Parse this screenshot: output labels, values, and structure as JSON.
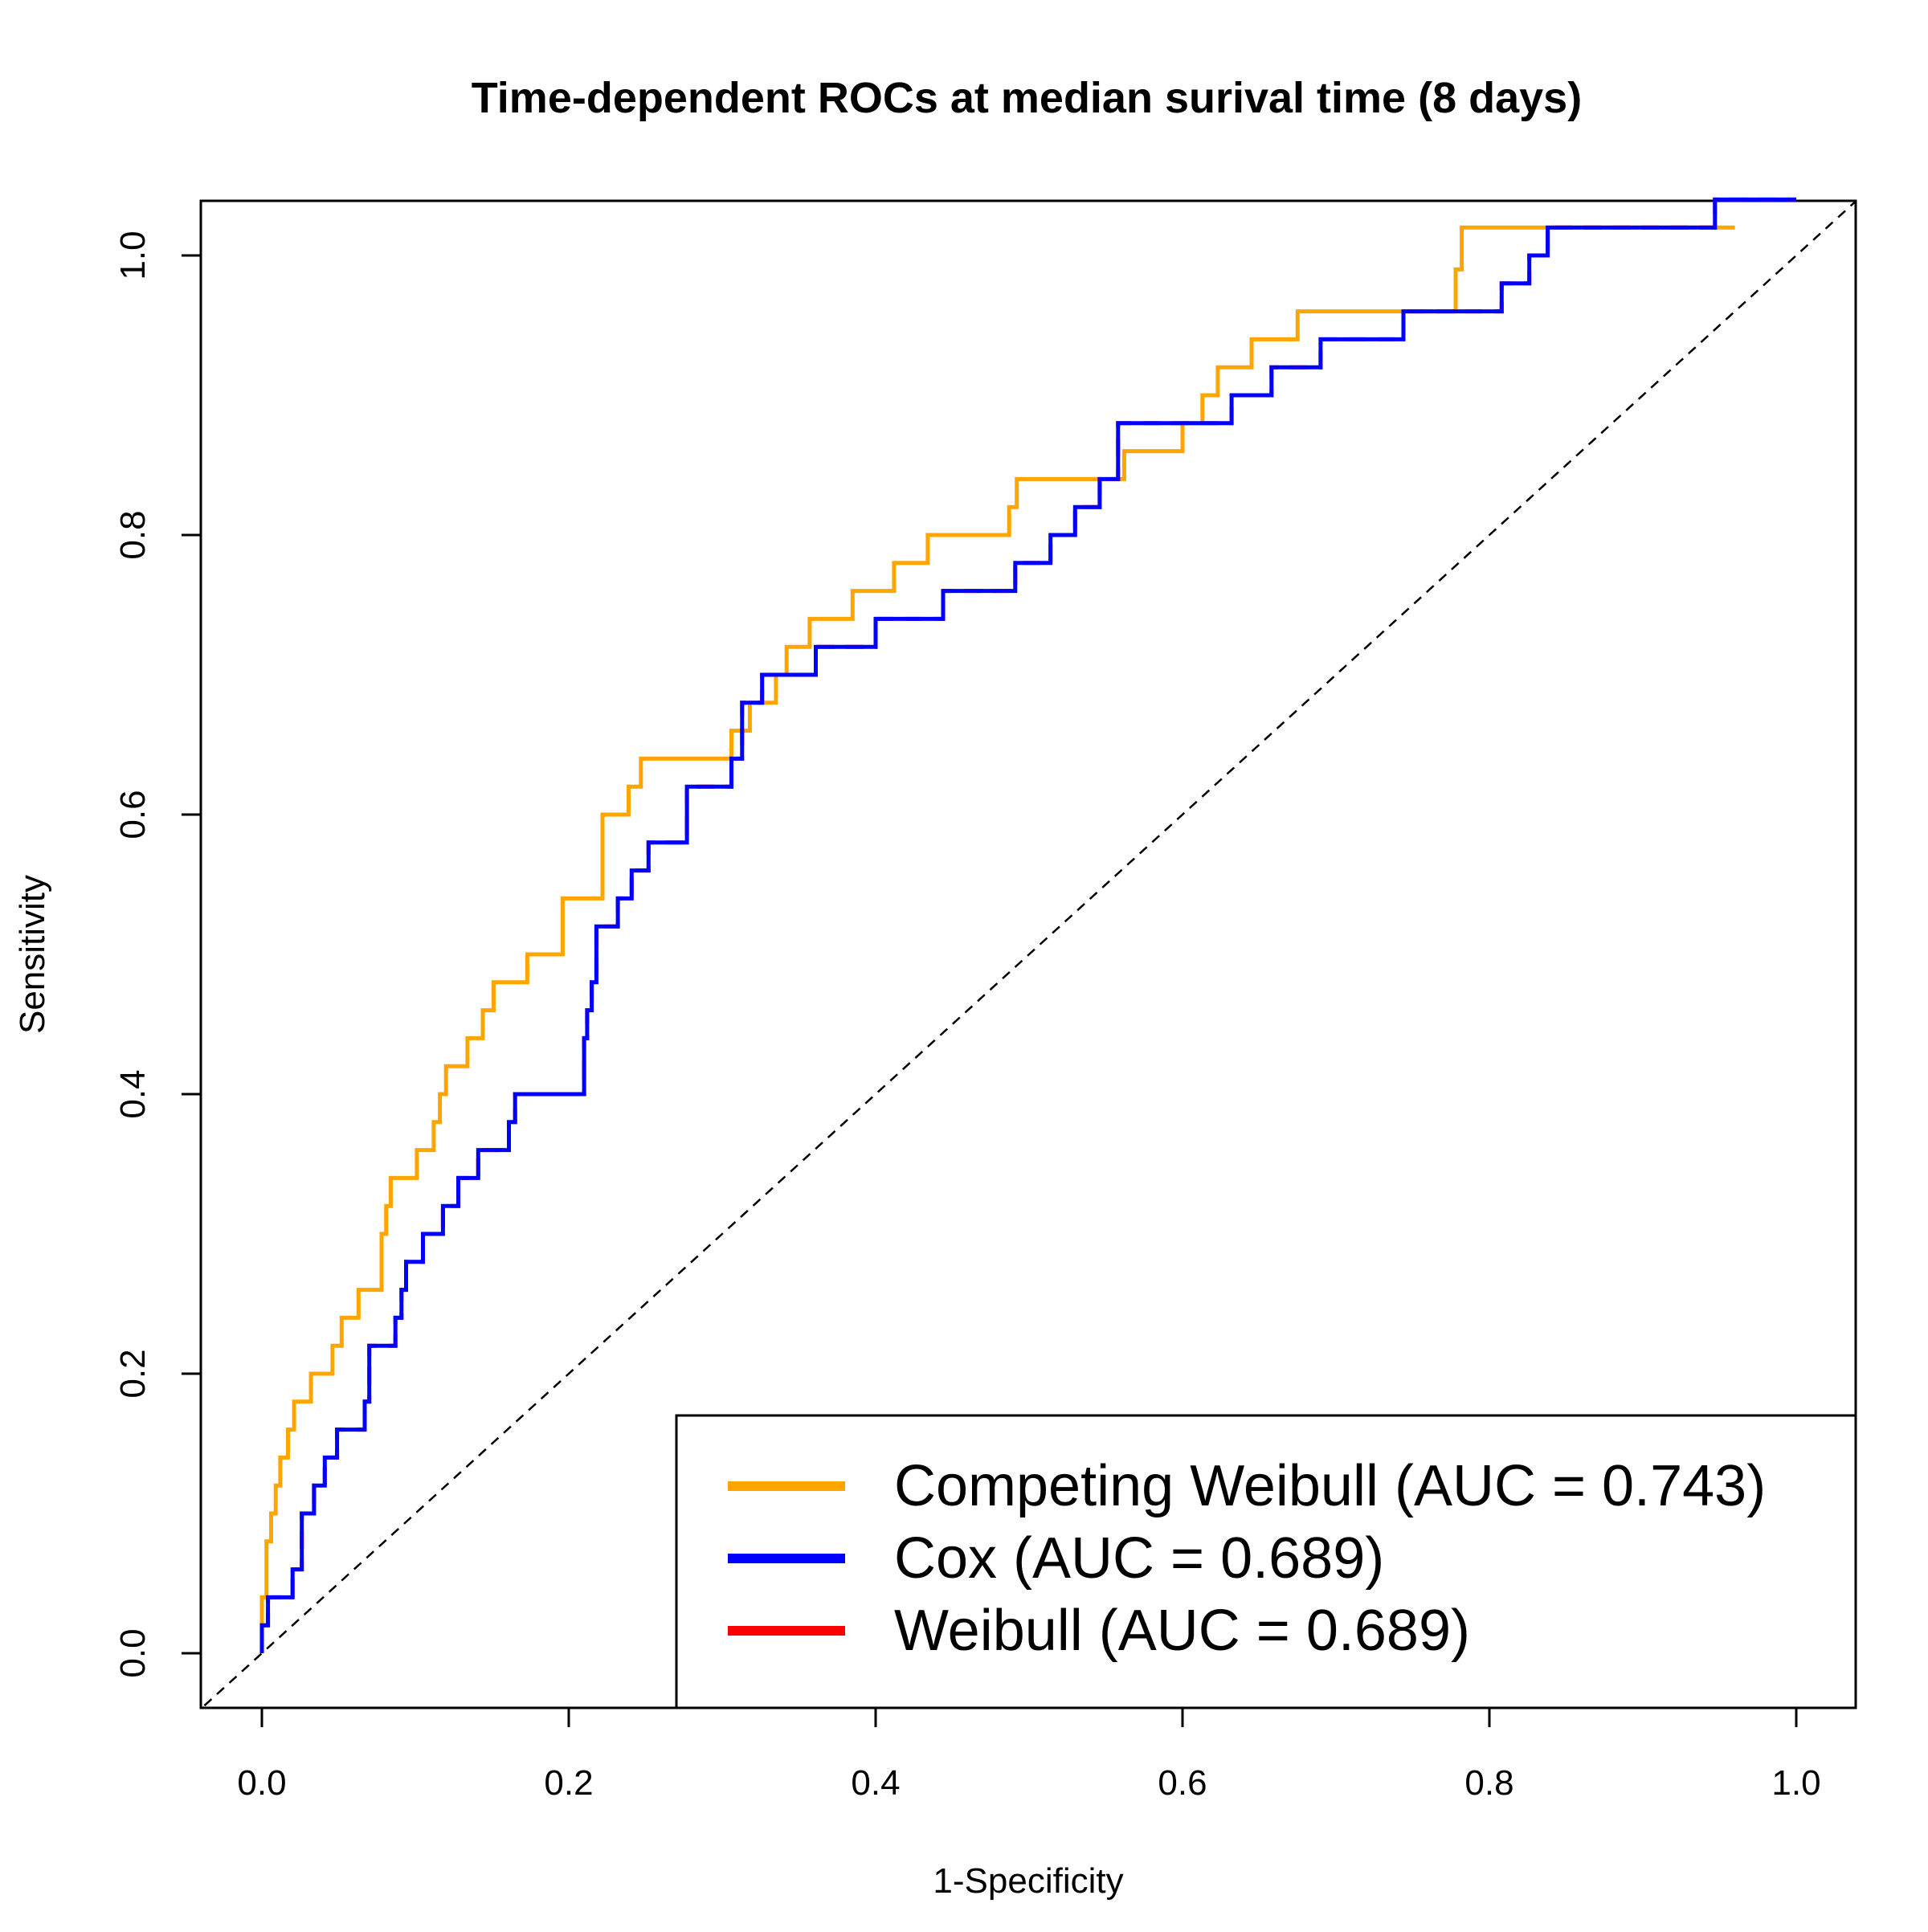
{
  "chart_data": {
    "type": "line",
    "title": "Time-dependent ROCs at median surival time (8 days)",
    "xlabel": "1-Specificity",
    "ylabel": "Sensitivity",
    "xlim": [
      0,
      1
    ],
    "ylim": [
      0,
      1
    ],
    "x_ticks": [
      "0.0",
      "0.2",
      "0.4",
      "0.6",
      "0.8",
      "1.0"
    ],
    "y_ticks": [
      "0.0",
      "0.2",
      "0.4",
      "0.6",
      "0.8",
      "1.0"
    ],
    "grid": false,
    "legend_position": "bottom-right",
    "reference_line": {
      "style": "dashed",
      "color": "#000000",
      "points": [
        [
          0,
          0
        ],
        [
          1,
          1
        ]
      ]
    },
    "series": [
      {
        "name": "Competing Weibull (AUC = 0.743)",
        "color": "#FFA500",
        "style": "solid",
        "points": [
          [
            0.0,
            0.0
          ],
          [
            0.0,
            0.04
          ],
          [
            0.003,
            0.04
          ],
          [
            0.003,
            0.08
          ],
          [
            0.006,
            0.08
          ],
          [
            0.006,
            0.1
          ],
          [
            0.009,
            0.1
          ],
          [
            0.009,
            0.12
          ],
          [
            0.012,
            0.12
          ],
          [
            0.012,
            0.14
          ],
          [
            0.017,
            0.14
          ],
          [
            0.017,
            0.16
          ],
          [
            0.021,
            0.16
          ],
          [
            0.021,
            0.18
          ],
          [
            0.032,
            0.18
          ],
          [
            0.032,
            0.2
          ],
          [
            0.046,
            0.2
          ],
          [
            0.046,
            0.22
          ],
          [
            0.052,
            0.22
          ],
          [
            0.052,
            0.24
          ],
          [
            0.063,
            0.24
          ],
          [
            0.063,
            0.26
          ],
          [
            0.078,
            0.26
          ],
          [
            0.078,
            0.3
          ],
          [
            0.081,
            0.3
          ],
          [
            0.081,
            0.32
          ],
          [
            0.084,
            0.32
          ],
          [
            0.084,
            0.34
          ],
          [
            0.101,
            0.34
          ],
          [
            0.101,
            0.36
          ],
          [
            0.112,
            0.36
          ],
          [
            0.112,
            0.38
          ],
          [
            0.116,
            0.38
          ],
          [
            0.116,
            0.4
          ],
          [
            0.12,
            0.4
          ],
          [
            0.12,
            0.42
          ],
          [
            0.134,
            0.42
          ],
          [
            0.134,
            0.44
          ],
          [
            0.144,
            0.44
          ],
          [
            0.144,
            0.46
          ],
          [
            0.151,
            0.46
          ],
          [
            0.151,
            0.48
          ],
          [
            0.173,
            0.48
          ],
          [
            0.173,
            0.5
          ],
          [
            0.196,
            0.5
          ],
          [
            0.196,
            0.54
          ],
          [
            0.222,
            0.54
          ],
          [
            0.222,
            0.6
          ],
          [
            0.239,
            0.6
          ],
          [
            0.239,
            0.62
          ],
          [
            0.247,
            0.62
          ],
          [
            0.247,
            0.64
          ],
          [
            0.306,
            0.64
          ],
          [
            0.306,
            0.66
          ],
          [
            0.318,
            0.66
          ],
          [
            0.318,
            0.68
          ],
          [
            0.335,
            0.68
          ],
          [
            0.335,
            0.7
          ],
          [
            0.342,
            0.7
          ],
          [
            0.342,
            0.72
          ],
          [
            0.357,
            0.72
          ],
          [
            0.357,
            0.74
          ],
          [
            0.385,
            0.74
          ],
          [
            0.385,
            0.76
          ],
          [
            0.412,
            0.76
          ],
          [
            0.412,
            0.78
          ],
          [
            0.434,
            0.78
          ],
          [
            0.434,
            0.8
          ],
          [
            0.487,
            0.8
          ],
          [
            0.487,
            0.82
          ],
          [
            0.492,
            0.82
          ],
          [
            0.492,
            0.84
          ],
          [
            0.562,
            0.84
          ],
          [
            0.562,
            0.86
          ],
          [
            0.6,
            0.86
          ],
          [
            0.6,
            0.88
          ],
          [
            0.613,
            0.88
          ],
          [
            0.613,
            0.9
          ],
          [
            0.623,
            0.9
          ],
          [
            0.623,
            0.92
          ],
          [
            0.645,
            0.92
          ],
          [
            0.645,
            0.94
          ],
          [
            0.675,
            0.94
          ],
          [
            0.675,
            0.96
          ],
          [
            0.778,
            0.96
          ],
          [
            0.778,
            0.99
          ],
          [
            0.782,
            0.99
          ],
          [
            0.782,
            1.02
          ],
          [
            0.96,
            1.02
          ],
          [
            0.96,
            1.02
          ]
        ]
      },
      {
        "name": "Cox (AUC = 0.689)",
        "color": "#0000FF",
        "style": "solid",
        "points": [
          [
            0.0,
            0.0
          ],
          [
            0.0,
            0.02
          ],
          [
            0.004,
            0.02
          ],
          [
            0.004,
            0.04
          ],
          [
            0.02,
            0.04
          ],
          [
            0.02,
            0.06
          ],
          [
            0.026,
            0.06
          ],
          [
            0.026,
            0.1
          ],
          [
            0.034,
            0.1
          ],
          [
            0.034,
            0.12
          ],
          [
            0.041,
            0.12
          ],
          [
            0.041,
            0.14
          ],
          [
            0.049,
            0.14
          ],
          [
            0.049,
            0.16
          ],
          [
            0.067,
            0.16
          ],
          [
            0.067,
            0.18
          ],
          [
            0.07,
            0.18
          ],
          [
            0.07,
            0.22
          ],
          [
            0.087,
            0.22
          ],
          [
            0.087,
            0.24
          ],
          [
            0.091,
            0.24
          ],
          [
            0.091,
            0.26
          ],
          [
            0.094,
            0.26
          ],
          [
            0.094,
            0.28
          ],
          [
            0.105,
            0.28
          ],
          [
            0.105,
            0.3
          ],
          [
            0.118,
            0.3
          ],
          [
            0.118,
            0.32
          ],
          [
            0.128,
            0.32
          ],
          [
            0.128,
            0.34
          ],
          [
            0.141,
            0.34
          ],
          [
            0.141,
            0.36
          ],
          [
            0.161,
            0.36
          ],
          [
            0.161,
            0.38
          ],
          [
            0.165,
            0.38
          ],
          [
            0.165,
            0.4
          ],
          [
            0.21,
            0.4
          ],
          [
            0.21,
            0.44
          ],
          [
            0.212,
            0.44
          ],
          [
            0.212,
            0.46
          ],
          [
            0.215,
            0.46
          ],
          [
            0.215,
            0.48
          ],
          [
            0.218,
            0.48
          ],
          [
            0.218,
            0.52
          ],
          [
            0.232,
            0.52
          ],
          [
            0.232,
            0.54
          ],
          [
            0.241,
            0.54
          ],
          [
            0.241,
            0.56
          ],
          [
            0.252,
            0.56
          ],
          [
            0.252,
            0.58
          ],
          [
            0.277,
            0.58
          ],
          [
            0.277,
            0.62
          ],
          [
            0.306,
            0.62
          ],
          [
            0.306,
            0.64
          ],
          [
            0.313,
            0.64
          ],
          [
            0.313,
            0.68
          ],
          [
            0.326,
            0.68
          ],
          [
            0.326,
            0.7
          ],
          [
            0.361,
            0.7
          ],
          [
            0.361,
            0.72
          ],
          [
            0.4,
            0.72
          ],
          [
            0.4,
            0.74
          ],
          [
            0.444,
            0.74
          ],
          [
            0.444,
            0.76
          ],
          [
            0.491,
            0.76
          ],
          [
            0.491,
            0.78
          ],
          [
            0.514,
            0.78
          ],
          [
            0.514,
            0.8
          ],
          [
            0.53,
            0.8
          ],
          [
            0.53,
            0.82
          ],
          [
            0.546,
            0.82
          ],
          [
            0.546,
            0.84
          ],
          [
            0.558,
            0.84
          ],
          [
            0.558,
            0.88
          ],
          [
            0.632,
            0.88
          ],
          [
            0.632,
            0.9
          ],
          [
            0.658,
            0.9
          ],
          [
            0.658,
            0.92
          ],
          [
            0.69,
            0.92
          ],
          [
            0.69,
            0.94
          ],
          [
            0.744,
            0.94
          ],
          [
            0.744,
            0.96
          ],
          [
            0.808,
            0.96
          ],
          [
            0.808,
            0.98
          ],
          [
            0.826,
            0.98
          ],
          [
            0.826,
            1.0
          ],
          [
            0.838,
            1.0
          ],
          [
            0.838,
            1.02
          ],
          [
            0.947,
            1.02
          ],
          [
            0.947,
            1.04
          ],
          [
            1.0,
            1.04
          ]
        ]
      },
      {
        "name": "Weibull (AUC = 0.689)",
        "color": "#FF0000",
        "style": "dashed",
        "points": [
          [
            0.0,
            0.0
          ],
          [
            0.0,
            0.02
          ],
          [
            0.004,
            0.02
          ],
          [
            0.004,
            0.04
          ],
          [
            0.02,
            0.04
          ],
          [
            0.02,
            0.06
          ],
          [
            0.026,
            0.06
          ],
          [
            0.026,
            0.1
          ],
          [
            0.034,
            0.1
          ],
          [
            0.034,
            0.12
          ],
          [
            0.041,
            0.12
          ],
          [
            0.041,
            0.14
          ],
          [
            0.049,
            0.14
          ],
          [
            0.049,
            0.16
          ],
          [
            0.067,
            0.16
          ],
          [
            0.067,
            0.18
          ],
          [
            0.07,
            0.18
          ],
          [
            0.07,
            0.22
          ],
          [
            0.087,
            0.22
          ],
          [
            0.087,
            0.24
          ],
          [
            0.091,
            0.24
          ],
          [
            0.091,
            0.26
          ],
          [
            0.094,
            0.26
          ],
          [
            0.094,
            0.28
          ],
          [
            0.105,
            0.28
          ],
          [
            0.105,
            0.3
          ],
          [
            0.118,
            0.3
          ],
          [
            0.118,
            0.32
          ],
          [
            0.128,
            0.32
          ],
          [
            0.128,
            0.34
          ],
          [
            0.141,
            0.34
          ],
          [
            0.141,
            0.36
          ],
          [
            0.161,
            0.36
          ],
          [
            0.161,
            0.38
          ],
          [
            0.165,
            0.38
          ],
          [
            0.165,
            0.4
          ],
          [
            0.21,
            0.4
          ],
          [
            0.21,
            0.44
          ],
          [
            0.212,
            0.44
          ],
          [
            0.212,
            0.46
          ],
          [
            0.215,
            0.46
          ],
          [
            0.215,
            0.48
          ],
          [
            0.218,
            0.48
          ],
          [
            0.218,
            0.52
          ],
          [
            0.232,
            0.52
          ],
          [
            0.232,
            0.54
          ],
          [
            0.241,
            0.54
          ],
          [
            0.241,
            0.56
          ],
          [
            0.252,
            0.56
          ],
          [
            0.252,
            0.58
          ],
          [
            0.277,
            0.58
          ],
          [
            0.277,
            0.62
          ],
          [
            0.306,
            0.62
          ],
          [
            0.306,
            0.64
          ],
          [
            0.313,
            0.64
          ],
          [
            0.313,
            0.68
          ],
          [
            0.326,
            0.68
          ],
          [
            0.326,
            0.7
          ],
          [
            0.361,
            0.7
          ],
          [
            0.361,
            0.72
          ],
          [
            0.4,
            0.72
          ],
          [
            0.4,
            0.74
          ],
          [
            0.444,
            0.74
          ],
          [
            0.444,
            0.76
          ],
          [
            0.491,
            0.76
          ],
          [
            0.491,
            0.78
          ],
          [
            0.514,
            0.78
          ],
          [
            0.514,
            0.8
          ],
          [
            0.53,
            0.8
          ],
          [
            0.53,
            0.82
          ],
          [
            0.546,
            0.82
          ],
          [
            0.546,
            0.84
          ],
          [
            0.558,
            0.84
          ],
          [
            0.558,
            0.88
          ],
          [
            0.632,
            0.88
          ],
          [
            0.632,
            0.9
          ],
          [
            0.658,
            0.9
          ],
          [
            0.658,
            0.92
          ],
          [
            0.69,
            0.92
          ],
          [
            0.69,
            0.94
          ],
          [
            0.744,
            0.94
          ],
          [
            0.744,
            0.96
          ],
          [
            0.808,
            0.96
          ],
          [
            0.808,
            0.98
          ],
          [
            0.826,
            0.98
          ],
          [
            0.826,
            1.0
          ],
          [
            0.838,
            1.0
          ],
          [
            0.838,
            1.02
          ],
          [
            0.947,
            1.02
          ],
          [
            0.947,
            1.04
          ],
          [
            1.0,
            1.04
          ]
        ]
      }
    ]
  }
}
